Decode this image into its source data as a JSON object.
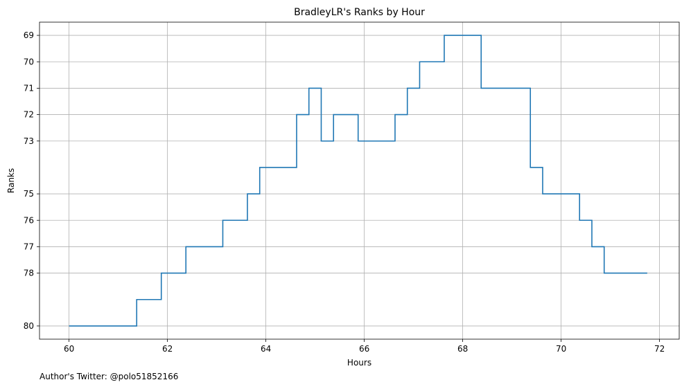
{
  "chart_data": {
    "type": "line",
    "drawstyle": "steps-post",
    "title": "BradleyLR's Ranks by Hour",
    "xlabel": "Hours",
    "ylabel": "Ranks",
    "xlim": [
      59.4,
      72.4
    ],
    "ylim": [
      80.5,
      68.5
    ],
    "y_inverted": true,
    "grid": true,
    "xticks": [
      60,
      62,
      64,
      66,
      68,
      70,
      72
    ],
    "yticks": [
      69,
      70,
      71,
      72,
      73,
      75,
      76,
      77,
      78,
      80
    ],
    "color": "#1f77b4",
    "series": [
      {
        "name": "BradleyLR",
        "x": [
          60.0,
          61.375,
          61.875,
          62.375,
          63.125,
          63.625,
          63.875,
          64.625,
          64.875,
          65.125,
          65.375,
          65.875,
          66.625,
          66.875,
          67.125,
          67.625,
          68.375,
          69.375,
          69.625,
          70.375,
          70.625,
          70.875,
          71.75
        ],
        "y": [
          80,
          79,
          78,
          77,
          76,
          75,
          74,
          72,
          71,
          73,
          72,
          73,
          72,
          71,
          70,
          69,
          71,
          74,
          75,
          76,
          77,
          78,
          78
        ]
      }
    ]
  },
  "footer": {
    "author_note": "Author's Twitter: @polo51852166"
  }
}
